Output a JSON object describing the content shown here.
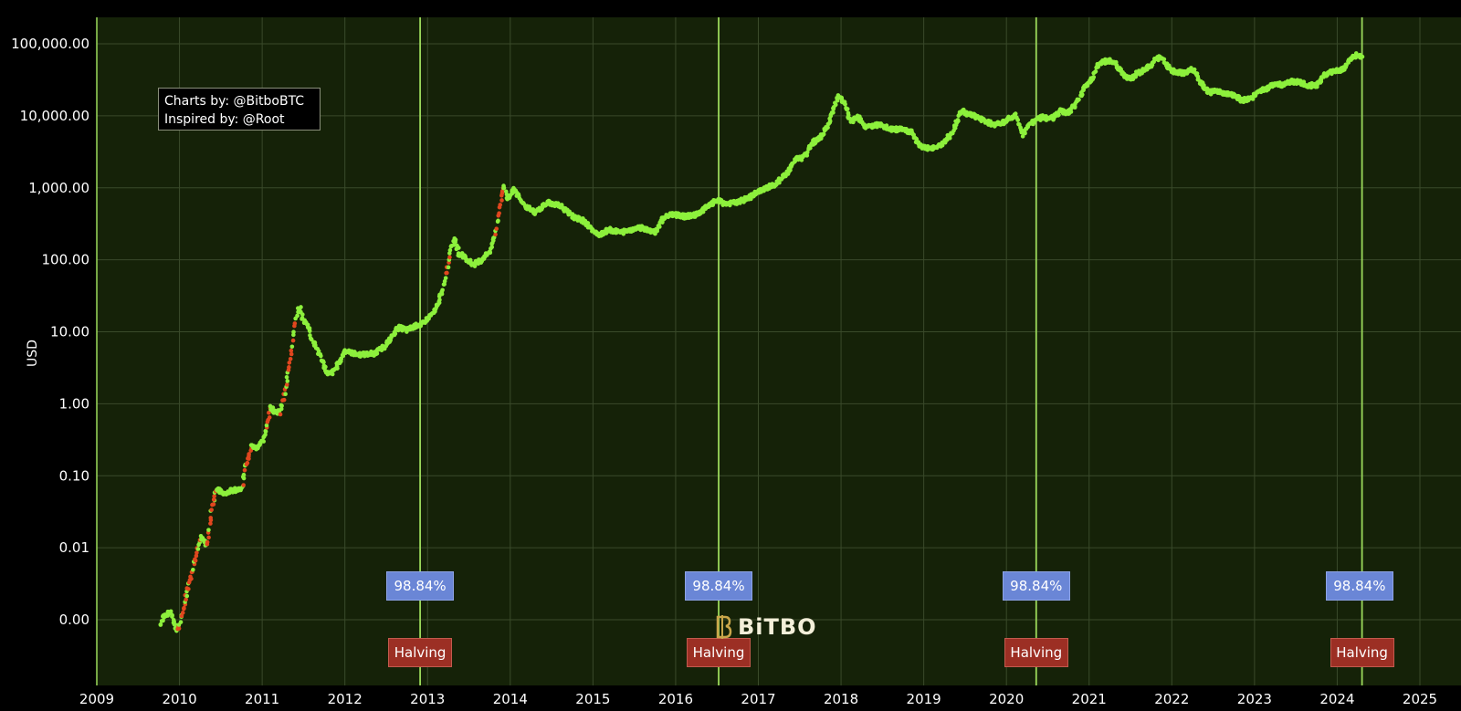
{
  "chart_data": {
    "type": "scatter",
    "y_scale": "log",
    "ylabel": "USD",
    "xlim": [
      2009,
      2025
    ],
    "ylim": [
      0.001,
      100000
    ],
    "y_ticks": [
      {
        "value": 0.001,
        "label": "0.00"
      },
      {
        "value": 0.01,
        "label": "0.01"
      },
      {
        "value": 0.1,
        "label": "0.10"
      },
      {
        "value": 1,
        "label": "1.00"
      },
      {
        "value": 10,
        "label": "10.00"
      },
      {
        "value": 100,
        "label": "100.00"
      },
      {
        "value": 1000,
        "label": "1,000.00"
      },
      {
        "value": 10000,
        "label": "10,000.00"
      },
      {
        "value": 100000,
        "label": "100,000.00"
      }
    ],
    "x_ticks": [
      {
        "value": 2009,
        "label": "2009"
      },
      {
        "value": 2010,
        "label": "2010"
      },
      {
        "value": 2011,
        "label": "2011"
      },
      {
        "value": 2012,
        "label": "2012"
      },
      {
        "value": 2013,
        "label": "2013"
      },
      {
        "value": 2014,
        "label": "2014"
      },
      {
        "value": 2015,
        "label": "2015"
      },
      {
        "value": 2016,
        "label": "2016"
      },
      {
        "value": 2017,
        "label": "2017"
      },
      {
        "value": 2018,
        "label": "2018"
      },
      {
        "value": 2019,
        "label": "2019"
      },
      {
        "value": 2020,
        "label": "2020"
      },
      {
        "value": 2021,
        "label": "2021"
      },
      {
        "value": 2022,
        "label": "2022"
      },
      {
        "value": 2023,
        "label": "2023"
      },
      {
        "value": 2024,
        "label": "2024"
      },
      {
        "value": 2025,
        "label": "2025"
      }
    ],
    "grid": true,
    "price_series": [
      [
        2009.77,
        0.00085
      ],
      [
        2009.8,
        0.0011
      ],
      [
        2009.86,
        0.0012
      ],
      [
        2009.9,
        0.0013
      ],
      [
        2009.94,
        0.00085
      ],
      [
        2009.98,
        0.0007
      ],
      [
        2010.15,
        0.0045
      ],
      [
        2010.25,
        0.014
      ],
      [
        2010.33,
        0.011
      ],
      [
        2010.4,
        0.04
      ],
      [
        2010.45,
        0.065
      ],
      [
        2010.55,
        0.055
      ],
      [
        2010.62,
        0.062
      ],
      [
        2010.7,
        0.064
      ],
      [
        2010.76,
        0.07
      ],
      [
        2010.8,
        0.13
      ],
      [
        2010.87,
        0.26
      ],
      [
        2010.93,
        0.24
      ],
      [
        2011.0,
        0.3
      ],
      [
        2011.05,
        0.45
      ],
      [
        2011.1,
        0.9
      ],
      [
        2011.15,
        0.8
      ],
      [
        2011.22,
        0.75
      ],
      [
        2011.3,
        2.0
      ],
      [
        2011.35,
        5.0
      ],
      [
        2011.41,
        15.0
      ],
      [
        2011.45,
        22.0
      ],
      [
        2011.5,
        14.0
      ],
      [
        2011.55,
        13.0
      ],
      [
        2011.6,
        8.0
      ],
      [
        2011.66,
        6.0
      ],
      [
        2011.72,
        4.0
      ],
      [
        2011.8,
        2.5
      ],
      [
        2011.86,
        2.8
      ],
      [
        2011.95,
        4.0
      ],
      [
        2012.0,
        5.5
      ],
      [
        2012.1,
        5.0
      ],
      [
        2012.2,
        4.8
      ],
      [
        2012.35,
        5.0
      ],
      [
        2012.45,
        5.8
      ],
      [
        2012.55,
        8.0
      ],
      [
        2012.65,
        11.5
      ],
      [
        2012.75,
        10.5
      ],
      [
        2012.85,
        12.0
      ],
      [
        2012.95,
        13.0
      ],
      [
        2013.1,
        20.0
      ],
      [
        2013.2,
        45.0
      ],
      [
        2013.28,
        140.0
      ],
      [
        2013.33,
        200.0
      ],
      [
        2013.38,
        120.0
      ],
      [
        2013.45,
        110.0
      ],
      [
        2013.55,
        85.0
      ],
      [
        2013.65,
        100.0
      ],
      [
        2013.75,
        130.0
      ],
      [
        2013.82,
        220.0
      ],
      [
        2013.88,
        600.0
      ],
      [
        2013.92,
        1100.0
      ],
      [
        2013.96,
        700.0
      ],
      [
        2014.05,
        950.0
      ],
      [
        2014.12,
        700.0
      ],
      [
        2014.2,
        550.0
      ],
      [
        2014.3,
        450.0
      ],
      [
        2014.45,
        620.0
      ],
      [
        2014.6,
        580.0
      ],
      [
        2014.75,
        400.0
      ],
      [
        2014.9,
        340.0
      ],
      [
        2015.05,
        220.0
      ],
      [
        2015.2,
        260.0
      ],
      [
        2015.35,
        240.0
      ],
      [
        2015.5,
        270.0
      ],
      [
        2015.6,
        280.0
      ],
      [
        2015.75,
        240.0
      ],
      [
        2015.85,
        380.0
      ],
      [
        2015.95,
        430.0
      ],
      [
        2016.1,
        400.0
      ],
      [
        2016.25,
        420.0
      ],
      [
        2016.4,
        560.0
      ],
      [
        2016.5,
        670.0
      ],
      [
        2016.6,
        600.0
      ],
      [
        2016.75,
        620.0
      ],
      [
        2016.9,
        750.0
      ],
      [
        2017.05,
        950.0
      ],
      [
        2017.2,
        1100.0
      ],
      [
        2017.35,
        1600.0
      ],
      [
        2017.45,
        2500.0
      ],
      [
        2017.55,
        2600.0
      ],
      [
        2017.65,
        4200.0
      ],
      [
        2017.75,
        5000.0
      ],
      [
        2017.85,
        7500.0
      ],
      [
        2017.93,
        15000.0
      ],
      [
        2017.97,
        19000.0
      ],
      [
        2018.05,
        14000.0
      ],
      [
        2018.12,
        8000.0
      ],
      [
        2018.2,
        10000.0
      ],
      [
        2018.3,
        7000.0
      ],
      [
        2018.45,
        7500.0
      ],
      [
        2018.6,
        6500.0
      ],
      [
        2018.75,
        6400.0
      ],
      [
        2018.85,
        6000.0
      ],
      [
        2018.95,
        3800.0
      ],
      [
        2019.1,
        3500.0
      ],
      [
        2019.25,
        4200.0
      ],
      [
        2019.35,
        6000.0
      ],
      [
        2019.45,
        12000.0
      ],
      [
        2019.55,
        10500.0
      ],
      [
        2019.65,
        9500.0
      ],
      [
        2019.75,
        8500.0
      ],
      [
        2019.85,
        7500.0
      ],
      [
        2019.95,
        8000.0
      ],
      [
        2020.05,
        9500.0
      ],
      [
        2020.12,
        10000.0
      ],
      [
        2020.2,
        5500.0
      ],
      [
        2020.3,
        8000.0
      ],
      [
        2020.42,
        9500.0
      ],
      [
        2020.55,
        9200.0
      ],
      [
        2020.65,
        11500.0
      ],
      [
        2020.75,
        11000.0
      ],
      [
        2020.85,
        15000.0
      ],
      [
        2020.95,
        25000.0
      ],
      [
        2021.05,
        35000.0
      ],
      [
        2021.1,
        50000.0
      ],
      [
        2021.2,
        58000.0
      ],
      [
        2021.3,
        57000.0
      ],
      [
        2021.4,
        38000.0
      ],
      [
        2021.5,
        33000.0
      ],
      [
        2021.6,
        40000.0
      ],
      [
        2021.7,
        45000.0
      ],
      [
        2021.8,
        60000.0
      ],
      [
        2021.87,
        65000.0
      ],
      [
        2021.95,
        48000.0
      ],
      [
        2022.05,
        40000.0
      ],
      [
        2022.15,
        39000.0
      ],
      [
        2022.25,
        45000.0
      ],
      [
        2022.35,
        30000.0
      ],
      [
        2022.45,
        21000.0
      ],
      [
        2022.55,
        22000.0
      ],
      [
        2022.65,
        20000.0
      ],
      [
        2022.75,
        19500.0
      ],
      [
        2022.85,
        16500.0
      ],
      [
        2022.95,
        17000.0
      ],
      [
        2023.05,
        22000.0
      ],
      [
        2023.15,
        24000.0
      ],
      [
        2023.25,
        28000.0
      ],
      [
        2023.35,
        27000.0
      ],
      [
        2023.45,
        30000.0
      ],
      [
        2023.55,
        29000.0
      ],
      [
        2023.65,
        26000.0
      ],
      [
        2023.75,
        27000.0
      ],
      [
        2023.85,
        37000.0
      ],
      [
        2023.95,
        42000.0
      ],
      [
        2024.05,
        43000.0
      ],
      [
        2024.12,
        52000.0
      ],
      [
        2024.2,
        68000.0
      ],
      [
        2024.25,
        70000.0
      ],
      [
        2024.3,
        65000.0
      ]
    ],
    "halvings": [
      2012.91,
      2016.52,
      2020.36,
      2024.3
    ],
    "annotations": [
      {
        "x": 2012.91,
        "label": "98.84%"
      },
      {
        "x": 2016.52,
        "label": "98.84%"
      },
      {
        "x": 2020.36,
        "label": "98.84%"
      },
      {
        "x": 2024.27,
        "label": "98.84%"
      }
    ],
    "halving_labels": [
      {
        "x": 2012.91,
        "label": "Halving"
      },
      {
        "x": 2016.52,
        "label": "Halving"
      },
      {
        "x": 2020.36,
        "label": "Halving"
      },
      {
        "x": 2024.3,
        "label": "Halving"
      }
    ],
    "colors": {
      "plot_background": "#152208",
      "grid": "#3a4a2a",
      "halving_line": "#9bd95a",
      "point_normal": "#8df03c",
      "point_hot": "#e0461e",
      "annotation_fill": "#6a86d6",
      "halving_fill": "#9c2f24"
    }
  },
  "credits": {
    "line1": "Charts by: @BitboBTC",
    "line2": "Inspired by: @Root"
  },
  "watermark": "BiTBO",
  "icons": {
    "watermark_logo": "bitbo-logo-icon"
  }
}
